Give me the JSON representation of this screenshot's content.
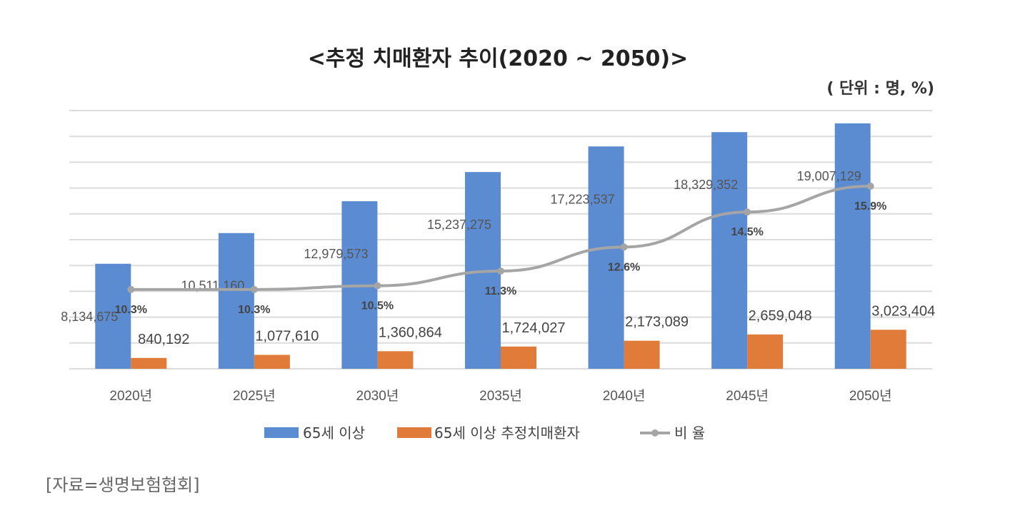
{
  "chart_data": {
    "type": "bar",
    "title": "<추정 치매환자 추이(2020 ~ 2050)>",
    "unit_note": "( 단위 : 명, %)",
    "categories": [
      "2020년",
      "2025년",
      "2030년",
      "2035년",
      "2040년",
      "2045년",
      "2050년"
    ],
    "series": [
      {
        "name": "65세 이상",
        "type": "bar",
        "color": "#5b8bd0",
        "values": [
          8134675,
          10511160,
          12979573,
          15237275,
          17223537,
          18329352,
          19007129
        ],
        "labels": [
          "8,134,675",
          "10,511,160",
          "12,979,573",
          "15,237,275",
          "17,223,537",
          "18,329,352",
          "19,007,129"
        ]
      },
      {
        "name": "65세 이상 추정치매환자",
        "type": "bar",
        "color": "#e07b39",
        "values": [
          840192,
          1077610,
          1360864,
          1724027,
          2173089,
          2659048,
          3023404
        ],
        "labels": [
          "840,192",
          "1,077,610",
          "1,360,864",
          "1,724,027",
          "2,173,089",
          "2,659,048",
          "3,023,404"
        ]
      },
      {
        "name": "비 율",
        "type": "line",
        "color": "#a5a5a5",
        "values": [
          10.3,
          10.3,
          10.5,
          11.3,
          12.6,
          14.5,
          15.9
        ],
        "labels": [
          "10.3%",
          "10.3%",
          "10.5%",
          "11.3%",
          "12.6%",
          "14.5%",
          "15.9%"
        ]
      }
    ],
    "grid": true,
    "legend": "bottom"
  },
  "source": "[자료=생명보험협회]"
}
